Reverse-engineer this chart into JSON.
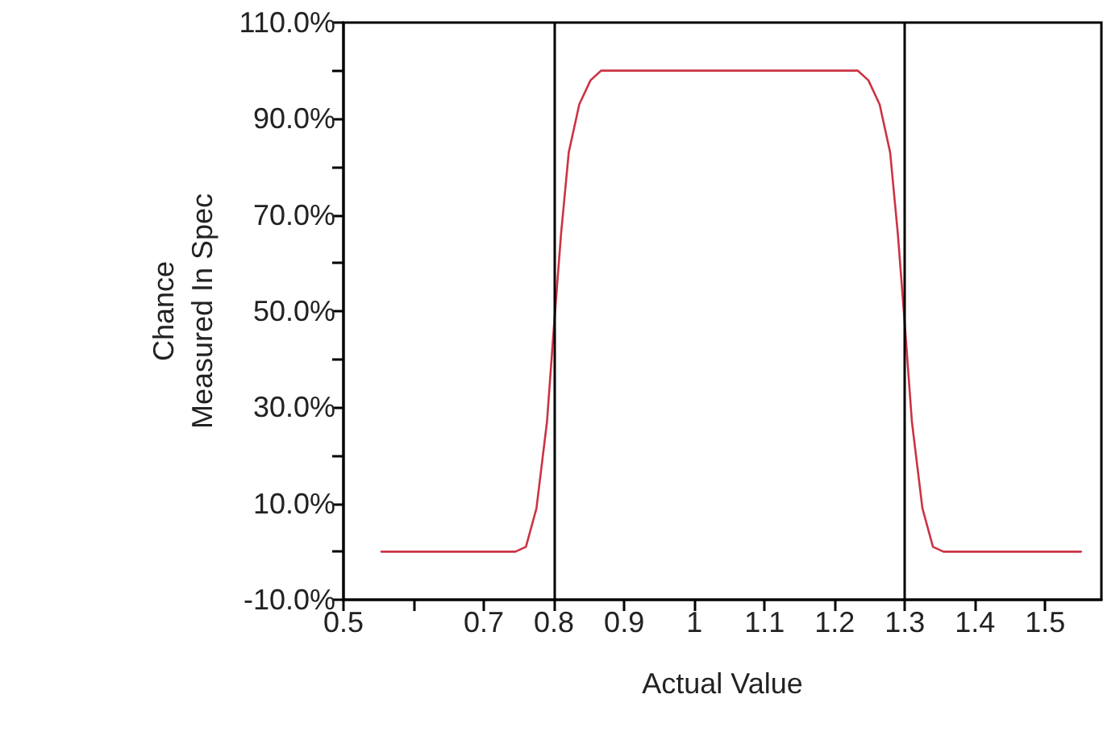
{
  "chart_data": {
    "type": "line",
    "xlabel": "Actual Value",
    "ylabel": "Chance\nMeasured In Spec",
    "x": [
      0.554,
      0.6,
      0.7,
      0.745,
      0.76,
      0.775,
      0.79,
      0.8,
      0.81,
      0.821,
      0.836,
      0.852,
      0.867,
      0.95,
      1.05,
      1.15,
      1.233,
      1.248,
      1.264,
      1.279,
      1.29,
      1.3,
      1.31,
      1.325,
      1.34,
      1.355,
      1.364,
      1.45,
      1.551
    ],
    "series": [
      {
        "color": "#cc3344",
        "values": [
          0,
          0,
          0,
          0,
          1,
          9,
          27,
          47,
          66,
          83,
          93,
          98,
          100,
          100,
          100,
          100,
          100,
          98,
          93,
          83,
          66,
          47,
          27,
          9,
          1,
          0,
          0,
          0,
          0
        ]
      }
    ],
    "xlim": [
      0.5,
      1.58
    ],
    "xticks": [
      0.5,
      {
        "value": 0.6,
        "label": null
      },
      0.7,
      0.8,
      0.9,
      1,
      1.1,
      1.2,
      1.3,
      1.4,
      1.5
    ],
    "ylim": [
      -10,
      110
    ],
    "yticks": [
      {
        "value": -10,
        "label": "-10.0%"
      },
      {
        "value": 0,
        "label": null
      },
      {
        "value": 10,
        "label": "10.0%"
      },
      {
        "value": 20,
        "label": null
      },
      {
        "value": 30,
        "label": "30.0%"
      },
      {
        "value": 40,
        "label": null
      },
      {
        "value": 50,
        "label": "50.0%"
      },
      {
        "value": 60,
        "label": null
      },
      {
        "value": 70,
        "label": "70.0%"
      },
      {
        "value": 80,
        "label": null
      },
      {
        "value": 90,
        "label": "90.0%"
      },
      {
        "value": 100,
        "label": null
      },
      {
        "value": 110,
        "label": "110.0%"
      }
    ],
    "ref_lines": [
      {
        "axis": "x",
        "value": 0.8,
        "color": "#000000"
      },
      {
        "axis": "x",
        "value": 1.3,
        "color": "#000000"
      }
    ],
    "marker": "none",
    "line_style": "solid"
  }
}
